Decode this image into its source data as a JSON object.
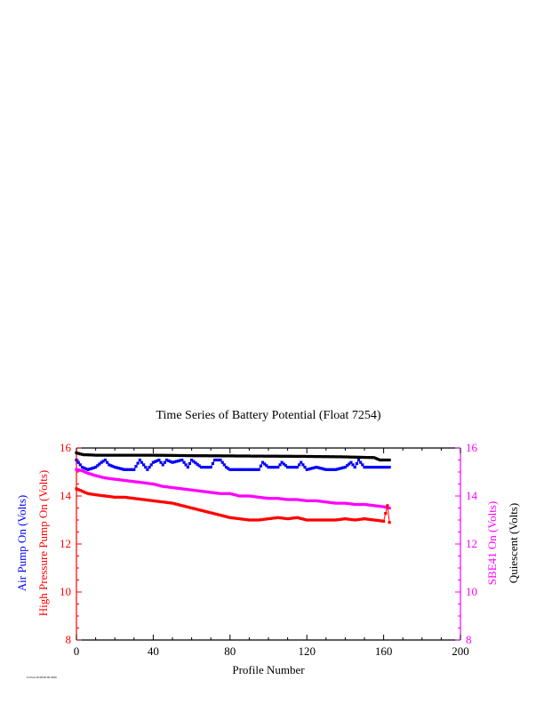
{
  "chart_data": {
    "type": "line",
    "title": "Time Series of Battery Potential (Float 7254)",
    "xlabel": "Profile Number",
    "xlim": [
      0,
      200
    ],
    "x_ticks": [
      0,
      40,
      80,
      120,
      160,
      200
    ],
    "ylim": [
      8,
      16
    ],
    "y_ticks": [
      8,
      10,
      12,
      14,
      16
    ],
    "grid": false,
    "axis_labels": {
      "left_outer": "Air Pump On (Volts)",
      "left_inner": "High Pressure Pump On (Volts)",
      "right_inner": "SBE41 On (Volts)",
      "right_outer": "Quiescent (Volts)"
    },
    "colors": {
      "air_pump": "#0000ff",
      "high_pressure_pump": "#ff0000",
      "sbe41": "#ff00ff",
      "quiescent": "#000000",
      "left_axis": "#ff0000",
      "right_axis": "#ff00ff"
    },
    "series": [
      {
        "key": "quiescent",
        "x": [
          0,
          2,
          4,
          10,
          20,
          40,
          60,
          80,
          100,
          120,
          140,
          155,
          158,
          160,
          163
        ],
        "values": [
          15.8,
          15.75,
          15.72,
          15.7,
          15.7,
          15.7,
          15.68,
          15.67,
          15.66,
          15.65,
          15.63,
          15.6,
          15.5,
          15.5,
          15.5
        ]
      },
      {
        "key": "sbe41",
        "x": [
          0,
          3,
          6,
          10,
          15,
          20,
          25,
          30,
          35,
          40,
          45,
          50,
          55,
          60,
          65,
          70,
          75,
          80,
          85,
          90,
          95,
          100,
          105,
          110,
          115,
          120,
          125,
          130,
          135,
          140,
          145,
          150,
          155,
          160,
          163
        ],
        "values": [
          15.1,
          15.05,
          14.95,
          14.85,
          14.75,
          14.7,
          14.65,
          14.6,
          14.55,
          14.5,
          14.4,
          14.35,
          14.3,
          14.25,
          14.2,
          14.15,
          14.1,
          14.1,
          14.0,
          14.0,
          13.95,
          13.9,
          13.9,
          13.85,
          13.85,
          13.8,
          13.8,
          13.75,
          13.7,
          13.7,
          13.65,
          13.65,
          13.6,
          13.55,
          13.5
        ]
      },
      {
        "key": "air_pump",
        "x": [
          0,
          3,
          6,
          10,
          13,
          15,
          17,
          20,
          25,
          30,
          33,
          35,
          37,
          40,
          43,
          45,
          47,
          50,
          55,
          58,
          60,
          65,
          70,
          72,
          75,
          78,
          80,
          85,
          90,
          95,
          97,
          100,
          105,
          107,
          110,
          115,
          117,
          120,
          125,
          130,
          135,
          140,
          143,
          145,
          147,
          150,
          155,
          160,
          163
        ],
        "values": [
          15.5,
          15.2,
          15.1,
          15.2,
          15.4,
          15.5,
          15.3,
          15.2,
          15.1,
          15.1,
          15.5,
          15.3,
          15.1,
          15.4,
          15.5,
          15.3,
          15.5,
          15.4,
          15.5,
          15.2,
          15.5,
          15.2,
          15.2,
          15.5,
          15.5,
          15.2,
          15.1,
          15.1,
          15.1,
          15.1,
          15.4,
          15.2,
          15.2,
          15.4,
          15.2,
          15.2,
          15.4,
          15.1,
          15.2,
          15.1,
          15.1,
          15.2,
          15.4,
          15.2,
          15.5,
          15.2,
          15.2,
          15.2,
          15.2
        ]
      },
      {
        "key": "high_pressure_pump",
        "x": [
          0,
          3,
          6,
          10,
          15,
          20,
          25,
          30,
          35,
          40,
          45,
          50,
          55,
          60,
          65,
          70,
          75,
          80,
          85,
          90,
          95,
          100,
          105,
          110,
          115,
          120,
          125,
          130,
          135,
          140,
          145,
          150,
          155,
          160,
          162,
          163
        ],
        "values": [
          14.3,
          14.2,
          14.1,
          14.05,
          14.0,
          13.95,
          13.95,
          13.9,
          13.85,
          13.8,
          13.75,
          13.7,
          13.6,
          13.5,
          13.4,
          13.3,
          13.2,
          13.1,
          13.05,
          13.0,
          13.0,
          13.05,
          13.1,
          13.05,
          13.1,
          13.0,
          13.0,
          13.0,
          13.0,
          13.05,
          13.0,
          13.05,
          13.0,
          12.95,
          13.6,
          12.9
        ]
      }
    ]
  },
  "footer": {
    "stamp": "Fri Feb 20 08:00:00 2009"
  }
}
